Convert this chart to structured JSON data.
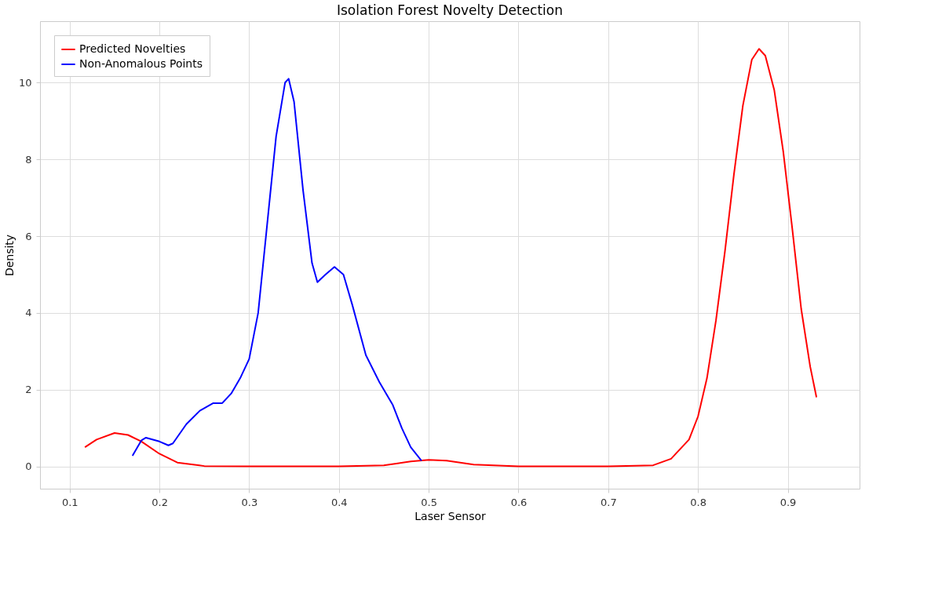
{
  "chart_data": {
    "type": "line",
    "title": "Isolation Forest Novelty Detection",
    "xlabel": "Laser Sensor",
    "ylabel": "Density",
    "xlim": [
      0.067,
      0.98
    ],
    "xticks": [
      0.1,
      0.2,
      0.3,
      0.4,
      0.5,
      0.6,
      0.7,
      0.8,
      0.9
    ],
    "ylim": [
      -0.58,
      11.6
    ],
    "yticks": [
      0,
      2,
      4,
      6,
      8,
      10
    ],
    "grid": true,
    "legend": "top left",
    "line_style": "solid",
    "series": [
      {
        "name": "Predicted Novelties",
        "color": "#ff0000",
        "x": [
          0.117,
          0.13,
          0.15,
          0.165,
          0.18,
          0.2,
          0.22,
          0.25,
          0.3,
          0.4,
          0.45,
          0.48,
          0.5,
          0.52,
          0.55,
          0.6,
          0.7,
          0.75,
          0.77,
          0.79,
          0.8,
          0.81,
          0.82,
          0.83,
          0.84,
          0.85,
          0.86,
          0.868,
          0.875,
          0.885,
          0.895,
          0.905,
          0.915,
          0.925,
          0.932
        ],
        "values": [
          0.5,
          0.7,
          0.87,
          0.82,
          0.65,
          0.33,
          0.1,
          0.01,
          0,
          0,
          0.03,
          0.13,
          0.17,
          0.15,
          0.05,
          0,
          0,
          0.03,
          0.2,
          0.7,
          1.3,
          2.3,
          3.8,
          5.6,
          7.6,
          9.4,
          10.6,
          10.88,
          10.7,
          9.8,
          8.2,
          6.2,
          4.1,
          2.6,
          1.8
        ]
      },
      {
        "name": "Non-Anomalous Points",
        "color": "#0000ff",
        "x": [
          0.17,
          0.18,
          0.185,
          0.2,
          0.21,
          0.215,
          0.23,
          0.245,
          0.26,
          0.27,
          0.28,
          0.29,
          0.3,
          0.31,
          0.32,
          0.33,
          0.34,
          0.344,
          0.35,
          0.36,
          0.37,
          0.376,
          0.385,
          0.395,
          0.405,
          0.415,
          0.43,
          0.445,
          0.46,
          0.47,
          0.48,
          0.492
        ],
        "values": [
          0.28,
          0.68,
          0.75,
          0.65,
          0.55,
          0.6,
          1.1,
          1.45,
          1.65,
          1.65,
          1.9,
          2.3,
          2.8,
          4,
          6.3,
          8.6,
          10.0,
          10.1,
          9.5,
          7.2,
          5.3,
          4.8,
          5.0,
          5.2,
          5.0,
          4.2,
          2.9,
          2.2,
          1.6,
          1.0,
          0.5,
          0.15
        ]
      }
    ]
  }
}
